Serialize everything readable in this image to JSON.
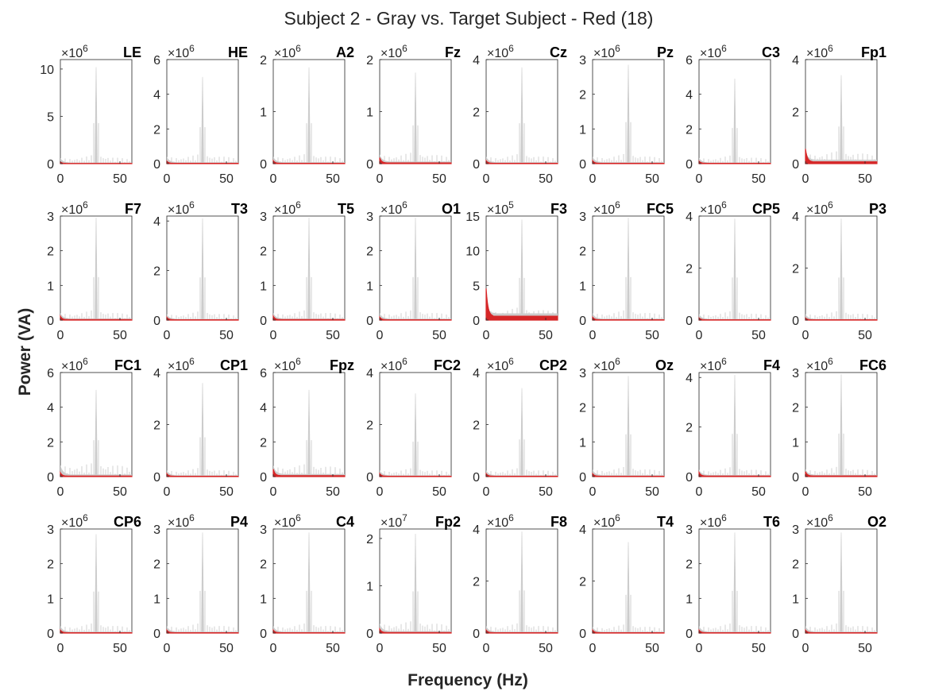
{
  "figure": {
    "title": "Subject 2 - Gray vs. Target Subject - Red (18)",
    "xlabel": "Frequency (Hz)",
    "ylabel": "Power (VA)"
  },
  "colors": {
    "gray": "#cccccc",
    "red": "#d62728",
    "axis": "#262626"
  },
  "chart_data": {
    "type": "line",
    "xlim": [
      0,
      60
    ],
    "xticks": [
      0,
      50
    ],
    "panels": [
      {
        "name": "LE",
        "exp": 6,
        "ylim": [
          0,
          11
        ],
        "yticks": [
          0,
          5,
          10
        ],
        "peak": 10.2,
        "red": 0.06,
        "noise": 0.9
      },
      {
        "name": "HE",
        "exp": 6,
        "ylim": [
          0,
          6
        ],
        "yticks": [
          0,
          2,
          4,
          6
        ],
        "peak": 5.0,
        "red": 0.05,
        "noise": 0.6
      },
      {
        "name": "A2",
        "exp": 6,
        "ylim": [
          0,
          2
        ],
        "yticks": [
          0,
          1,
          2
        ],
        "peak": 1.85,
        "red": 0.02,
        "noise": 0.2
      },
      {
        "name": "Fz",
        "exp": 6,
        "ylim": [
          0,
          2
        ],
        "yticks": [
          0,
          1,
          2
        ],
        "peak": 1.75,
        "red": 0.04,
        "noise": 0.25
      },
      {
        "name": "Cz",
        "exp": 6,
        "ylim": [
          0,
          4
        ],
        "yticks": [
          0,
          2,
          4
        ],
        "peak": 3.7,
        "red": 0.04,
        "noise": 0.4
      },
      {
        "name": "Pz",
        "exp": 6,
        "ylim": [
          0,
          3
        ],
        "yticks": [
          0,
          1,
          2,
          3
        ],
        "peak": 2.85,
        "red": 0.03,
        "noise": 0.3
      },
      {
        "name": "C3",
        "exp": 6,
        "ylim": [
          0,
          6
        ],
        "yticks": [
          0,
          2,
          4,
          6
        ],
        "peak": 4.9,
        "red": 0.05,
        "noise": 0.5
      },
      {
        "name": "Fp1",
        "exp": 6,
        "ylim": [
          0,
          4
        ],
        "yticks": [
          0,
          2,
          4
        ],
        "peak": 3.4,
        "red": 0.2,
        "noise": 0.6
      },
      {
        "name": "F7",
        "exp": 6,
        "ylim": [
          0,
          3
        ],
        "yticks": [
          0,
          1,
          2,
          3
        ],
        "peak": 2.95,
        "red": 0.04,
        "noise": 0.3
      },
      {
        "name": "T3",
        "exp": 6,
        "ylim": [
          0,
          4.2
        ],
        "yticks": [
          0,
          2,
          4
        ],
        "peak": 4.1,
        "red": 0.04,
        "noise": 0.35
      },
      {
        "name": "T5",
        "exp": 6,
        "ylim": [
          0,
          3
        ],
        "yticks": [
          0,
          1,
          2,
          3
        ],
        "peak": 2.95,
        "red": 0.04,
        "noise": 0.3
      },
      {
        "name": "O1",
        "exp": 6,
        "ylim": [
          0,
          3
        ],
        "yticks": [
          0,
          1,
          2,
          3
        ],
        "peak": 2.95,
        "red": 0.03,
        "noise": 0.3
      },
      {
        "name": "F3",
        "exp": 5,
        "ylim": [
          0,
          15
        ],
        "yticks": [
          0,
          5,
          10,
          15
        ],
        "peak": 14.5,
        "red": 1.6,
        "noise": 2.2
      },
      {
        "name": "FC5",
        "exp": 6,
        "ylim": [
          0,
          3
        ],
        "yticks": [
          0,
          1,
          2,
          3
        ],
        "peak": 2.95,
        "red": 0.03,
        "noise": 0.3
      },
      {
        "name": "CP5",
        "exp": 6,
        "ylim": [
          0,
          4
        ],
        "yticks": [
          0,
          2,
          4
        ],
        "peak": 3.9,
        "red": 0.03,
        "noise": 0.35
      },
      {
        "name": "P3",
        "exp": 6,
        "ylim": [
          0,
          4
        ],
        "yticks": [
          0,
          2,
          4
        ],
        "peak": 3.9,
        "red": 0.03,
        "noise": 0.35
      },
      {
        "name": "FC1",
        "exp": 6,
        "ylim": [
          0,
          6
        ],
        "yticks": [
          0,
          2,
          4,
          6
        ],
        "peak": 5.0,
        "red": 0.08,
        "noise": 1.0
      },
      {
        "name": "CP1",
        "exp": 6,
        "ylim": [
          0,
          4
        ],
        "yticks": [
          0,
          2,
          4
        ],
        "peak": 3.6,
        "red": 0.04,
        "noise": 0.35
      },
      {
        "name": "Fpz",
        "exp": 6,
        "ylim": [
          0,
          6
        ],
        "yticks": [
          0,
          2,
          4,
          6
        ],
        "peak": 5.0,
        "red": 0.15,
        "noise": 0.9
      },
      {
        "name": "FC2",
        "exp": 6,
        "ylim": [
          0,
          4
        ],
        "yticks": [
          0,
          2,
          4
        ],
        "peak": 3.2,
        "red": 0.04,
        "noise": 0.35
      },
      {
        "name": "CP2",
        "exp": 6,
        "ylim": [
          0,
          4
        ],
        "yticks": [
          0,
          2,
          4
        ],
        "peak": 3.4,
        "red": 0.04,
        "noise": 0.35
      },
      {
        "name": "Oz",
        "exp": 6,
        "ylim": [
          0,
          3
        ],
        "yticks": [
          0,
          1,
          2,
          3
        ],
        "peak": 2.9,
        "red": 0.03,
        "noise": 0.3
      },
      {
        "name": "F4",
        "exp": 6,
        "ylim": [
          0,
          4.2
        ],
        "yticks": [
          0,
          2,
          4
        ],
        "peak": 4.1,
        "red": 0.06,
        "noise": 0.4
      },
      {
        "name": "FC6",
        "exp": 6,
        "ylim": [
          0,
          3
        ],
        "yticks": [
          0,
          1,
          2,
          3
        ],
        "peak": 2.95,
        "red": 0.05,
        "noise": 0.3
      },
      {
        "name": "CP6",
        "exp": 6,
        "ylim": [
          0,
          3
        ],
        "yticks": [
          0,
          1,
          2,
          3
        ],
        "peak": 2.85,
        "red": 0.03,
        "noise": 0.3
      },
      {
        "name": "P4",
        "exp": 6,
        "ylim": [
          0,
          3
        ],
        "yticks": [
          0,
          1,
          2,
          3
        ],
        "peak": 2.9,
        "red": 0.03,
        "noise": 0.3
      },
      {
        "name": "C4",
        "exp": 6,
        "ylim": [
          0,
          3
        ],
        "yticks": [
          0,
          1,
          2,
          3
        ],
        "peak": 2.9,
        "red": 0.03,
        "noise": 0.3
      },
      {
        "name": "Fp2",
        "exp": 7,
        "ylim": [
          0,
          2.2
        ],
        "yticks": [
          0,
          1,
          2
        ],
        "peak": 2.1,
        "red": 0.03,
        "noise": 0.3
      },
      {
        "name": "F8",
        "exp": 6,
        "ylim": [
          0,
          4
        ],
        "yticks": [
          0,
          2,
          4
        ],
        "peak": 3.9,
        "red": 0.04,
        "noise": 0.4
      },
      {
        "name": "T4",
        "exp": 6,
        "ylim": [
          0,
          4
        ],
        "yticks": [
          0,
          2,
          4
        ],
        "peak": 3.5,
        "red": 0.04,
        "noise": 0.35
      },
      {
        "name": "T6",
        "exp": 6,
        "ylim": [
          0,
          3
        ],
        "yticks": [
          0,
          1,
          2,
          3
        ],
        "peak": 2.9,
        "red": 0.03,
        "noise": 0.3
      },
      {
        "name": "O2",
        "exp": 6,
        "ylim": [
          0,
          3
        ],
        "yticks": [
          0,
          1,
          2,
          3
        ],
        "peak": 2.9,
        "red": 0.03,
        "noise": 0.3
      }
    ]
  }
}
